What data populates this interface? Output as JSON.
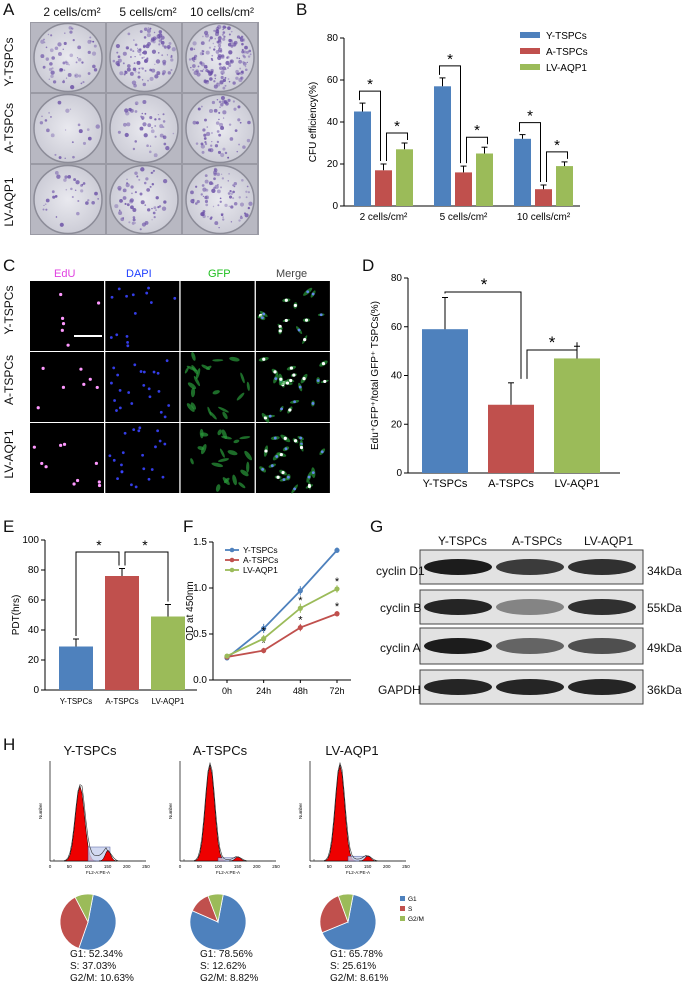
{
  "panels": {
    "a": "A",
    "b": "B",
    "c": "C",
    "d": "D",
    "e": "E",
    "f": "F",
    "g": "G",
    "h": "H"
  },
  "panel_a": {
    "columns": [
      "2 cells/cm²",
      "5 cells/cm²",
      "10 cells/cm²"
    ],
    "rows": [
      "Y-TSPCs",
      "A-TSPCs",
      "LV-AQP1"
    ]
  },
  "panel_c": {
    "columns": [
      "EdU",
      "DAPI",
      "GFP",
      "Merge"
    ],
    "column_colors": [
      "#e040e0",
      "#2040ff",
      "#20c020",
      "#444444"
    ],
    "rows": [
      "Y-TSPCs",
      "A-TSPCs",
      "LV-AQP1"
    ]
  },
  "colors": {
    "y": "#4e81bd",
    "a": "#c0504d",
    "lv": "#9bbb59"
  },
  "chart_data": [
    {
      "panel": "B",
      "type": "bar",
      "categories": [
        "2 cells/cm²",
        "5 cells/cm²",
        "10 cells/cm²"
      ],
      "series": [
        {
          "name": "Y-TSPCs",
          "values": [
            45,
            57,
            32
          ],
          "errors": [
            4,
            4,
            2
          ]
        },
        {
          "name": "A-TSPCs",
          "values": [
            17,
            16,
            8
          ],
          "errors": [
            3,
            3,
            2
          ]
        },
        {
          "name": "LV-AQP1",
          "values": [
            27,
            25,
            19
          ],
          "errors": [
            3,
            3,
            2
          ]
        }
      ],
      "ylabel": "CFU efficiency(%)",
      "ylim": [
        0,
        80
      ],
      "yticks": [
        "0",
        "20",
        "40",
        "60",
        "80"
      ],
      "significance": "*",
      "legend_position": "top-right"
    },
    {
      "panel": "D",
      "type": "bar",
      "categories": [
        "Y-TSPCs",
        "A-TSPCs",
        "LV-AQP1"
      ],
      "values": [
        59,
        28,
        47
      ],
      "errors": [
        13,
        9,
        5
      ],
      "ylabel": "Edu⁺GFP⁺/total GFP⁺ TSPCs(%)",
      "ylim": [
        0,
        80
      ],
      "yticks": [
        "0",
        "20",
        "40",
        "60",
        "80"
      ],
      "significance": "*"
    },
    {
      "panel": "E",
      "type": "bar",
      "categories": [
        "Y-TSPCs",
        "A-TSPCs",
        "LV-AQP1"
      ],
      "values": [
        29,
        76,
        49
      ],
      "errors": [
        5,
        5,
        8
      ],
      "ylabel": "PDT(hrs)",
      "ylim": [
        0,
        100
      ],
      "yticks": [
        "0",
        "20",
        "40",
        "60",
        "80",
        "100"
      ],
      "significance": "*"
    },
    {
      "panel": "F",
      "type": "line",
      "categories": [
        "0h",
        "24h",
        "48h",
        "72h"
      ],
      "series": [
        {
          "name": "Y-TSPCs",
          "values": [
            0.24,
            0.56,
            0.97,
            1.41
          ],
          "errors": [
            0.02,
            0.05,
            0.05,
            0.03
          ]
        },
        {
          "name": "A-TSPCs",
          "values": [
            0.25,
            0.32,
            0.57,
            0.72
          ],
          "errors": [
            0.02,
            0.03,
            0.04,
            0.03
          ]
        },
        {
          "name": "LV-AQP1",
          "values": [
            0.26,
            0.45,
            0.78,
            0.99
          ],
          "errors": [
            0.02,
            0.04,
            0.05,
            0.04
          ]
        }
      ],
      "ylabel": "OD at 450nm",
      "ylim": [
        0,
        1.5
      ],
      "yticks": [
        "0.0",
        "0.5",
        "1.0",
        "1.5"
      ],
      "significance": "*",
      "legend_position": "top-left"
    },
    {
      "panel": "H",
      "type": "pie",
      "groups": [
        {
          "name": "Y-TSPCs",
          "labels": [
            "G1",
            "S",
            "G2/M"
          ],
          "values": [
            52.34,
            37.03,
            10.63
          ]
        },
        {
          "name": "A-TSPCs",
          "labels": [
            "G1",
            "S",
            "G2/M"
          ],
          "values": [
            78.56,
            12.62,
            8.82
          ]
        },
        {
          "name": "LV-AQP1",
          "labels": [
            "G1",
            "S",
            "G2/M"
          ],
          "values": [
            65.78,
            25.61,
            8.61
          ]
        }
      ],
      "legend": [
        "G1",
        "S",
        "G2/M"
      ],
      "histogram_xticks": [
        "0",
        "50",
        "100",
        "150",
        "200",
        "250"
      ],
      "histogram_xlabel": "FL2-A:PE-A",
      "histogram_ylabel": "Number"
    }
  ],
  "panel_g": {
    "columns": [
      "Y-TSPCs",
      "A-TSPCs",
      "LV-AQP1"
    ],
    "bands": [
      {
        "protein": "cyclin D1",
        "size": "34kDa"
      },
      {
        "protein": "cyclin B",
        "size": "55kDa"
      },
      {
        "protein": "cyclin A",
        "size": "49kDa"
      },
      {
        "protein": "GAPDH",
        "size": "36kDa"
      }
    ]
  },
  "panel_h": {
    "texts": [
      [
        "G1: 52.34%",
        "S: 37.03%",
        "G2/M: 10.63%"
      ],
      [
        "G1: 78.56%",
        "S: 12.62%",
        "G2/M: 8.82%"
      ],
      [
        "G1: 65.78%",
        "S: 25.61%",
        "G2/M: 8.61%"
      ]
    ]
  }
}
